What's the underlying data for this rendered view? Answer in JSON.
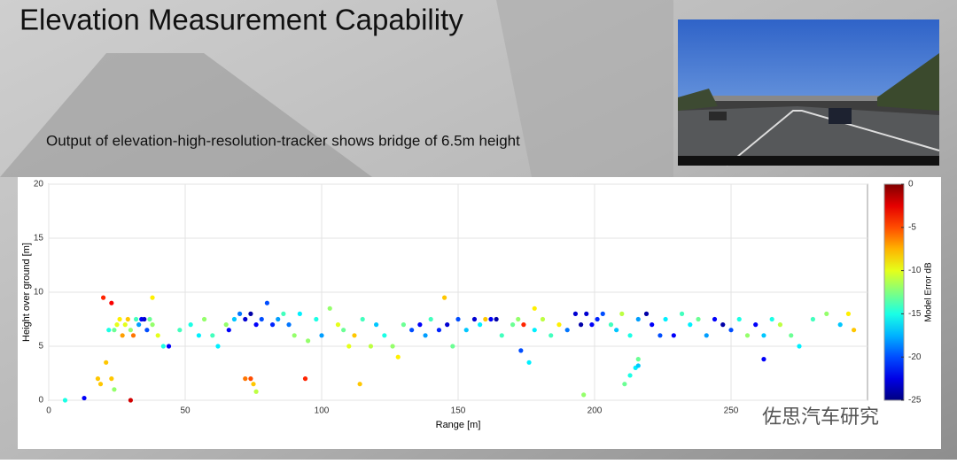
{
  "slide": {
    "title": "Elevation Measurement Capability",
    "subtitle": "Output of elevation-high-resolution-tracker shows bridge of 6.5m height",
    "watermark": "佐思汽车研究"
  },
  "chart_data": {
    "type": "scatter",
    "x_label": "Range [m]",
    "y_label": "Height over ground [m]",
    "colorbar_label": "Model Error dB",
    "xlim": [
      0,
      300
    ],
    "ylim": [
      0,
      20
    ],
    "xticks": [
      0,
      50,
      100,
      150,
      200,
      250
    ],
    "yticks": [
      0,
      5,
      10,
      15,
      20
    ],
    "clim": [
      -25,
      0
    ],
    "cticks": [
      0,
      -5,
      -10,
      -15,
      -20,
      -25
    ],
    "colormap": "jet",
    "grid": true,
    "x": [
      6,
      13,
      18,
      19,
      20,
      21,
      23,
      23,
      24,
      30,
      72,
      74,
      75,
      76,
      94,
      114,
      145,
      196,
      211,
      213,
      215,
      216,
      216,
      173,
      176,
      262,
      38,
      128,
      178,
      22,
      24,
      25,
      26,
      27,
      28,
      29,
      30,
      31,
      32,
      33,
      34,
      35,
      36,
      37,
      38,
      40,
      42,
      44,
      48,
      52,
      55,
      57,
      60,
      62,
      65,
      66,
      68,
      70,
      72,
      74,
      76,
      78,
      80,
      82,
      84,
      86,
      88,
      90,
      92,
      95,
      98,
      100,
      103,
      106,
      108,
      110,
      112,
      115,
      118,
      120,
      123,
      126,
      130,
      133,
      136,
      138,
      140,
      143,
      146,
      148,
      150,
      153,
      156,
      158,
      160,
      162,
      164,
      166,
      170,
      172,
      174,
      178,
      181,
      184,
      187,
      190,
      193,
      195,
      197,
      199,
      201,
      203,
      206,
      208,
      210,
      213,
      216,
      219,
      221,
      224,
      226,
      229,
      232,
      235,
      238,
      241,
      244,
      247,
      250,
      253,
      256,
      259,
      262,
      265,
      268,
      272,
      275,
      280,
      285,
      290,
      293,
      295
    ],
    "y": [
      0,
      0.2,
      2,
      1.5,
      9.5,
      3.5,
      2,
      9,
      1,
      0,
      2,
      2,
      1.5,
      0.8,
      2,
      1.5,
      9.5,
      0.5,
      1.5,
      2.3,
      3,
      3.2,
      3.8,
      4.6,
      3.5,
      3.8,
      9.5,
      4,
      8.5,
      6.5,
      6.5,
      7,
      7.5,
      6,
      7,
      7.5,
      6.5,
      6,
      7.5,
      7,
      7.5,
      7.5,
      6.5,
      7.5,
      7,
      6,
      5,
      5,
      6.5,
      7,
      6,
      7.5,
      6,
      5,
      7,
      6.5,
      7.5,
      8,
      7.5,
      8,
      7,
      7.5,
      9,
      7,
      7.5,
      8,
      7,
      6,
      8,
      5.5,
      7.5,
      6,
      8.5,
      7,
      6.5,
      5,
      6,
      7.5,
      5,
      7,
      6,
      5,
      7,
      6.5,
      7,
      6,
      7.5,
      6.5,
      7,
      5,
      7.5,
      6.5,
      7.5,
      7,
      7.5,
      7.5,
      7.5,
      6,
      7,
      7.5,
      7,
      6.5,
      7.5,
      6,
      7,
      6.5,
      8,
      7,
      8,
      7,
      7.5,
      8,
      7,
      6.5,
      8,
      6,
      7.5,
      8,
      7,
      6,
      7.5,
      6,
      8,
      7,
      7.5,
      6,
      7.5,
      7,
      6.5,
      7.5,
      6,
      7,
      6,
      7.5,
      7,
      6,
      5,
      7.5,
      8,
      7,
      8,
      6.5
    ],
    "c": [
      -15,
      -22,
      -8,
      -8,
      -4,
      -8,
      -8,
      -3,
      -12,
      -2,
      -6,
      -5,
      -8,
      -11,
      -4,
      -8,
      -8,
      -12,
      -13,
      -15,
      -16,
      -17,
      -13,
      -20,
      -16,
      -22,
      -9,
      -9,
      -9,
      -15,
      -13,
      -10,
      -9,
      -7,
      -10,
      -8,
      -12,
      -6,
      -14,
      -18,
      -22,
      -23,
      -20,
      -13,
      -12,
      -10,
      -15,
      -22,
      -14,
      -15,
      -16,
      -12,
      -14,
      -16,
      -12,
      -22,
      -17,
      -19,
      -23,
      -24,
      -22,
      -20,
      -20,
      -21,
      -18,
      -14,
      -19,
      -12,
      -16,
      -12,
      -15,
      -18,
      -12,
      -10,
      -13,
      -10,
      -8,
      -14,
      -11,
      -17,
      -15,
      -12,
      -13,
      -20,
      -22,
      -18,
      -14,
      -21,
      -23,
      -13,
      -20,
      -17,
      -23,
      -16,
      -8,
      -22,
      -24,
      -14,
      -13,
      -12,
      -4,
      -16,
      -11,
      -14,
      -9,
      -19,
      -23,
      -24,
      -23,
      -22,
      -21,
      -20,
      -14,
      -17,
      -11,
      -15,
      -18,
      -24,
      -22,
      -20,
      -16,
      -22,
      -14,
      -16,
      -13,
      -18,
      -22,
      -24,
      -20,
      -15,
      -12,
      -22,
      -17,
      -15,
      -11,
      -13,
      -16,
      -14,
      -12,
      -17,
      -9,
      -8
    ]
  }
}
